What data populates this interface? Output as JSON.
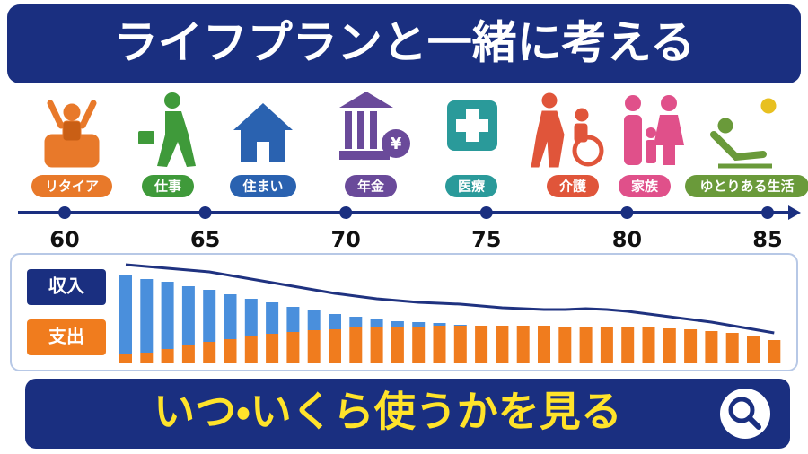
{
  "header": {
    "title": "ライフプランと一緒に考える"
  },
  "events": [
    {
      "label": "リタイア",
      "color": "#e8792a"
    },
    {
      "label": "仕事",
      "color": "#3f9a3a"
    },
    {
      "label": "住まい",
      "color": "#2a62b0"
    },
    {
      "label": "年金",
      "color": "#6a4a9a"
    },
    {
      "label": "医療",
      "color": "#2a9a9a"
    },
    {
      "label": "介護",
      "color": "#e0553a"
    },
    {
      "label": "家族",
      "color": "#e0508a"
    },
    {
      "label": "ゆとりある生活",
      "color": "#6a9a3a"
    }
  ],
  "timeline": {
    "ages": [
      60,
      65,
      70,
      75,
      80,
      85
    ]
  },
  "chart_data": {
    "type": "bar",
    "stacked": true,
    "series": [
      {
        "name": "支出",
        "color": "#f07c1e",
        "values": [
          10,
          12,
          16,
          20,
          24,
          27,
          30,
          33,
          35,
          37,
          38,
          40,
          40,
          40,
          41,
          42,
          42,
          42,
          42,
          42,
          42,
          41,
          41,
          41,
          40,
          40,
          39,
          38,
          36,
          34,
          31,
          26
        ]
      },
      {
        "name": "収入",
        "color": "#4a8fdc",
        "values": [
          88,
          82,
          75,
          66,
          58,
          50,
          42,
          35,
          28,
          22,
          17,
          12,
          9,
          7,
          5,
          3,
          1,
          0,
          0,
          0,
          0,
          0,
          0,
          0,
          0,
          0,
          0,
          0,
          0,
          0,
          0,
          0
        ]
      }
    ],
    "line": {
      "color": "#1f3280",
      "values": [
        110,
        108,
        106,
        104,
        102,
        98,
        94,
        90,
        86,
        82,
        78,
        75,
        72,
        70,
        68,
        67,
        66,
        64,
        62,
        61,
        60,
        60,
        61,
        60,
        58,
        55,
        52,
        49,
        46,
        42,
        38,
        34
      ]
    },
    "ylim": [
      0,
      120
    ]
  },
  "footer": {
    "title": "いつ・いくら使うかを見る"
  }
}
